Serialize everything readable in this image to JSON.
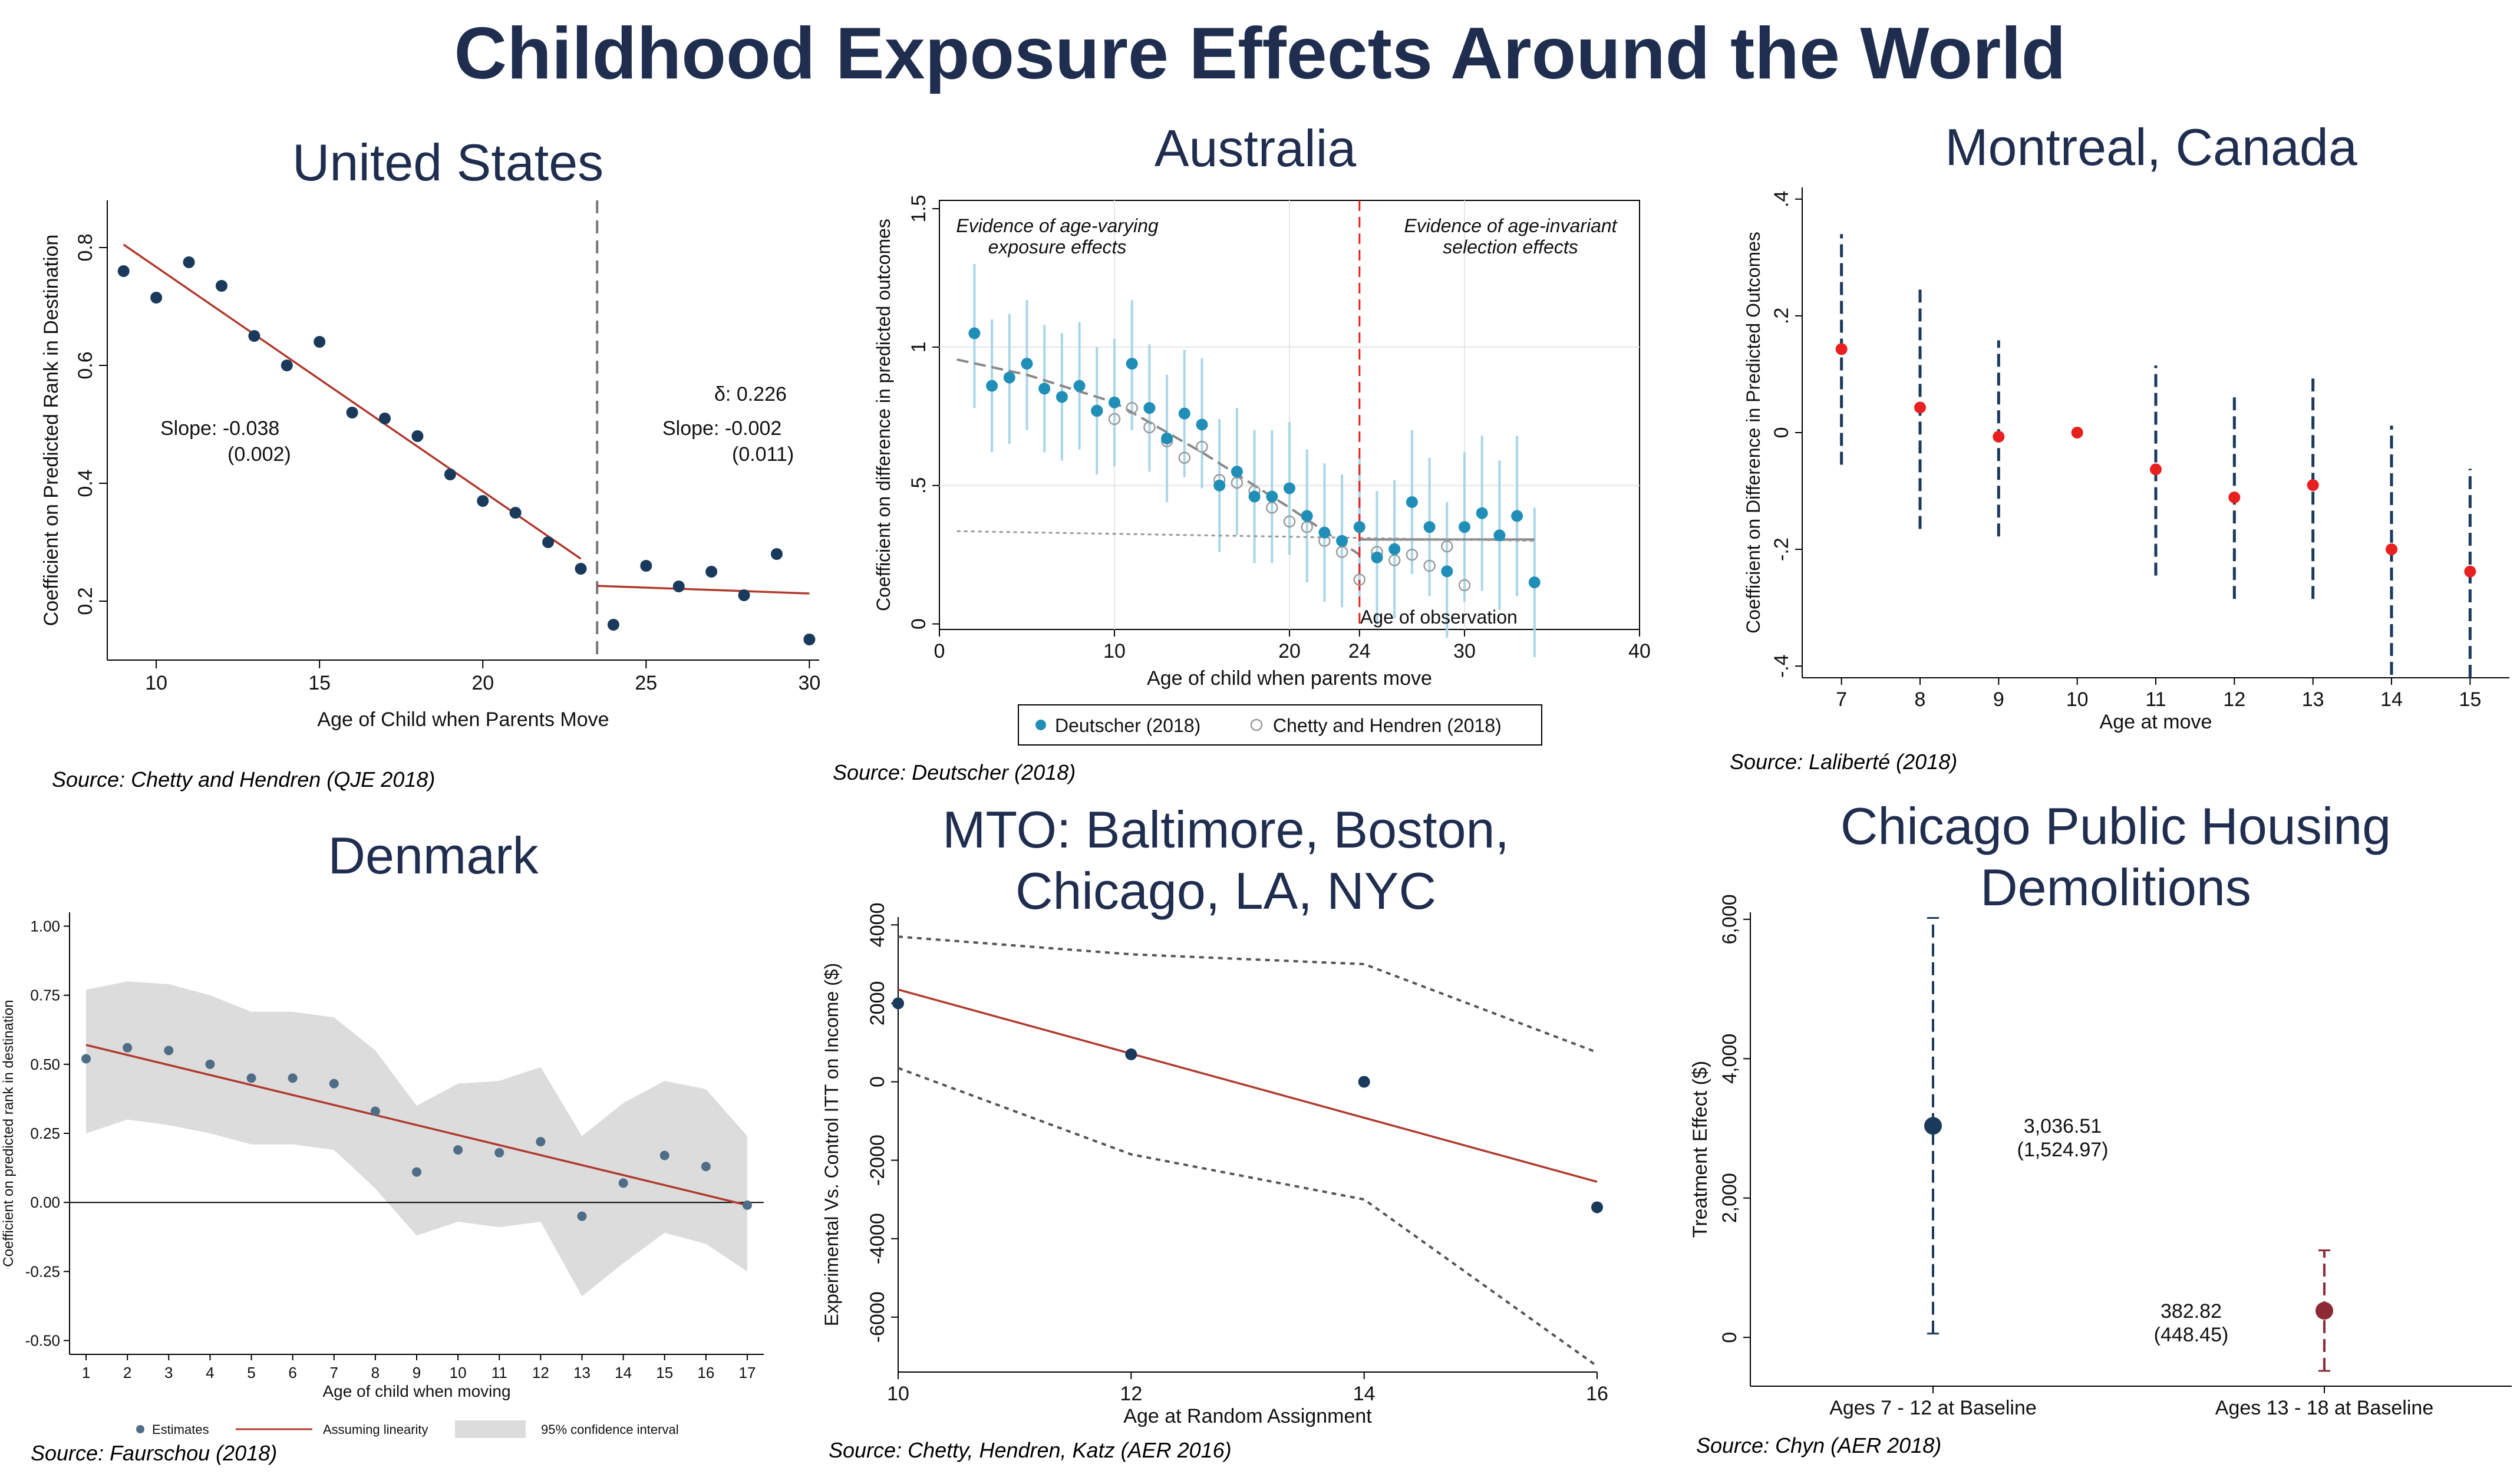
{
  "title": "Childhood Exposure Effects Around the World",
  "colors": {
    "title": "#1f2d4e",
    "navy": "#1a3a5c",
    "red_line": "#b03a2e",
    "teal": "#1f8fb8",
    "light_teal": "#a9d6e8",
    "grey_marker": "#9a9a9a",
    "bright_red": "#e8201f",
    "maroon": "#8b2a35",
    "band": "#dcdcdc",
    "denmark_dot": "#4f6d87"
  },
  "chart_data": [
    {
      "id": "us",
      "type": "scatter",
      "title": "United States",
      "source": "Source: Chetty and Hendren (QJE 2018)",
      "xlabel": "Age of Child when Parents Move",
      "ylabel": "Coefficient on Predicted Rank in Destination",
      "xlim": [
        8.5,
        30.3
      ],
      "ylim": [
        0.1,
        0.88
      ],
      "xticks": [
        "10",
        "15",
        "20",
        "25",
        "30"
      ],
      "yticks": [
        "0.2",
        "0.4",
        "0.6",
        "0.8"
      ],
      "x": [
        9,
        10,
        11,
        12,
        13,
        14,
        15,
        16,
        17,
        18,
        19,
        20,
        21,
        22,
        23,
        24,
        25,
        26,
        27,
        28,
        29,
        30
      ],
      "values": [
        0.76,
        0.715,
        0.775,
        0.735,
        0.65,
        0.6,
        0.64,
        0.52,
        0.51,
        0.48,
        0.415,
        0.37,
        0.35,
        0.3,
        0.255,
        0.16,
        0.26,
        0.225,
        0.25,
        0.21,
        0.28,
        0.135
      ],
      "fit_lines": [
        {
          "x": [
            9,
            23
          ],
          "y": [
            0.805,
            0.272
          ]
        },
        {
          "x": [
            23.5,
            30
          ],
          "y": [
            0.226,
            0.213
          ]
        }
      ],
      "vline_x": 23.5,
      "annotations": {
        "slope_left_label": "Slope:  -0.038",
        "slope_left_se": "(0.002)",
        "delta": "δ: 0.226",
        "slope_right_label": "Slope:  -0.002",
        "slope_right_se": "(0.011)"
      }
    },
    {
      "id": "australia",
      "type": "scatter",
      "title": "Australia",
      "source": "Source: Deutscher (2018)",
      "xlabel": "Age of child when parents move",
      "ylabel": "Coefficient on difference in predicted outcomes",
      "xlim": [
        0,
        40
      ],
      "ylim": [
        -0.02,
        1.53
      ],
      "xticks": [
        "0",
        "10",
        "20",
        "24",
        "30",
        "40"
      ],
      "yticks": [
        "0",
        ".5",
        "1",
        "1.5"
      ],
      "series": [
        {
          "name": "Deutscher (2018)",
          "x": [
            2,
            3,
            4,
            5,
            6,
            7,
            8,
            9,
            10,
            11,
            12,
            13,
            14,
            15,
            16,
            17,
            18,
            19,
            20,
            21,
            22,
            23,
            24,
            25,
            26,
            27,
            28,
            29,
            30,
            31,
            32,
            33,
            34
          ],
          "values": [
            1.05,
            0.86,
            0.89,
            0.94,
            0.85,
            0.82,
            0.86,
            0.77,
            0.8,
            0.94,
            0.78,
            0.67,
            0.76,
            0.72,
            0.5,
            0.55,
            0.46,
            0.46,
            0.49,
            0.39,
            0.33,
            0.3,
            0.35,
            0.24,
            0.27,
            0.44,
            0.35,
            0.19,
            0.35,
            0.4,
            0.32,
            0.39,
            0.15
          ],
          "ci_low": [
            0.78,
            0.62,
            0.65,
            0.7,
            0.62,
            0.59,
            0.63,
            0.54,
            0.57,
            0.7,
            0.55,
            0.44,
            0.53,
            0.49,
            0.26,
            0.32,
            0.22,
            0.22,
            0.25,
            0.15,
            0.08,
            0.06,
            0.1,
            0.0,
            0.02,
            0.18,
            0.1,
            -0.05,
            0.08,
            0.12,
            0.05,
            0.1,
            -0.12
          ],
          "ci_high": [
            1.3,
            1.1,
            1.12,
            1.17,
            1.08,
            1.05,
            1.09,
            1.0,
            1.03,
            1.17,
            1.01,
            0.9,
            0.99,
            0.96,
            0.74,
            0.78,
            0.7,
            0.7,
            0.73,
            0.63,
            0.58,
            0.54,
            0.6,
            0.48,
            0.52,
            0.7,
            0.6,
            0.44,
            0.62,
            0.68,
            0.59,
            0.68,
            0.42
          ]
        },
        {
          "name": "Chetty and Hendren (2018)",
          "x": [
            9,
            10,
            11,
            12,
            13,
            14,
            15,
            16,
            17,
            18,
            19,
            20,
            21,
            22,
            23,
            24,
            25,
            26,
            27,
            28,
            29,
            30
          ],
          "values": [
            0.77,
            0.74,
            0.78,
            0.71,
            0.66,
            0.6,
            0.64,
            0.52,
            0.51,
            0.48,
            0.42,
            0.37,
            0.35,
            0.3,
            0.26,
            0.16,
            0.26,
            0.23,
            0.25,
            0.21,
            0.28,
            0.14
          ]
        }
      ],
      "fit_lines": [
        {
          "x": [
            1,
            5,
            10,
            15,
            20,
            24
          ],
          "y": [
            0.955,
            0.9,
            0.8,
            0.62,
            0.42,
            0.25
          ]
        },
        {
          "x": [
            24,
            34
          ],
          "y": [
            0.305,
            0.305
          ]
        },
        {
          "x": [
            1,
            34
          ],
          "y": [
            0.335,
            0.3
          ]
        }
      ],
      "vline_x": 24,
      "annotations": {
        "left_line1": "Evidence of age-varying",
        "left_line2": "exposure effects",
        "right_line1": "Evidence of age-invariant",
        "right_line2": "selection effects",
        "age_observation": "Age of observation"
      },
      "legend_position": "bottom"
    },
    {
      "id": "montreal",
      "type": "scatter",
      "title": "Montreal, Canada",
      "source": "Source: Laliberté (2018)",
      "xlabel": "Age at move",
      "ylabel": "Coefficient on Difference in Predicted Outcomes",
      "xlim": [
        6.5,
        15.5
      ],
      "ylim": [
        -0.42,
        0.42
      ],
      "xticks": [
        "7",
        "8",
        "9",
        "10",
        "11",
        "12",
        "13",
        "14",
        "15"
      ],
      "yticks": [
        "-.4",
        "-.2",
        "0",
        ".2",
        ".4"
      ],
      "x": [
        7,
        8,
        9,
        10,
        11,
        12,
        13,
        14,
        15
      ],
      "values": [
        0.143,
        0.043,
        -0.007,
        0.0,
        -0.063,
        -0.111,
        -0.09,
        -0.2,
        -0.238
      ],
      "ci_low": [
        -0.055,
        -0.165,
        -0.178,
        null,
        -0.245,
        -0.285,
        -0.285,
        -0.415,
        -0.42
      ],
      "ci_high": [
        0.34,
        0.245,
        0.158,
        null,
        0.115,
        0.065,
        0.102,
        0.012,
        -0.062
      ]
    },
    {
      "id": "denmark",
      "type": "scatter",
      "title": "Denmark",
      "source": "Source: Faurschou (2018)",
      "xlabel": "Age of child when moving",
      "ylabel": "Coefficient on predicted rank in destination",
      "xlim": [
        0.6,
        17.4
      ],
      "ylim": [
        -0.55,
        1.05
      ],
      "xticks": [
        "1",
        "2",
        "3",
        "4",
        "5",
        "6",
        "7",
        "8",
        "9",
        "10",
        "11",
        "12",
        "13",
        "14",
        "15",
        "16",
        "17"
      ],
      "yticks": [
        "-0.50",
        "-0.25",
        "0.00",
        "0.25",
        "0.50",
        "0.75",
        "1.00"
      ],
      "x": [
        1,
        2,
        3,
        4,
        5,
        6,
        7,
        8,
        9,
        10,
        11,
        12,
        13,
        14,
        15,
        16,
        17
      ],
      "values": [
        0.52,
        0.56,
        0.55,
        0.5,
        0.45,
        0.45,
        0.43,
        0.33,
        0.11,
        0.19,
        0.18,
        0.22,
        -0.05,
        0.07,
        0.17,
        0.13,
        -0.01
      ],
      "band_low": [
        0.25,
        0.3,
        0.28,
        0.25,
        0.21,
        0.21,
        0.19,
        0.05,
        -0.12,
        -0.07,
        -0.09,
        -0.07,
        -0.34,
        -0.22,
        -0.11,
        -0.15,
        -0.25
      ],
      "band_high": [
        0.77,
        0.8,
        0.79,
        0.75,
        0.69,
        0.69,
        0.67,
        0.55,
        0.35,
        0.43,
        0.44,
        0.49,
        0.24,
        0.36,
        0.44,
        0.41,
        0.24
      ],
      "fit_line": {
        "x": [
          1,
          17
        ],
        "y": [
          0.57,
          -0.01
        ]
      },
      "legend": [
        "Estimates",
        "Assuming linearity",
        "95% confidence interval"
      ],
      "legend_position": "bottom"
    },
    {
      "id": "mto",
      "type": "line",
      "title_lines": [
        "MTO: Baltimore, Boston,",
        "Chicago, LA, NYC"
      ],
      "source": "Source: Chetty, Hendren, Katz (AER 2016)",
      "xlabel": "Age at Random Assignment",
      "ylabel": "Experimental Vs. Control ITT on Income ($)",
      "xlim": [
        10,
        16
      ],
      "ylim": [
        -7400,
        4200
      ],
      "xticks": [
        "10",
        "12",
        "14",
        "16"
      ],
      "yticks": [
        "-6000",
        "-4000",
        "-2000",
        "0",
        "2000",
        "4000"
      ],
      "x": [
        10,
        12,
        14,
        16
      ],
      "values": [
        2000,
        700,
        0,
        -3200
      ],
      "fit_line": {
        "x": [
          10,
          16
        ],
        "y": [
          2350,
          -2550
        ]
      },
      "ci_upper": {
        "x": [
          10,
          12,
          14,
          16
        ],
        "y": [
          3700,
          3250,
          3000,
          750
        ]
      },
      "ci_lower": {
        "x": [
          10,
          12,
          14,
          16
        ],
        "y": [
          350,
          -1850,
          -3000,
          -7250
        ]
      }
    },
    {
      "id": "chicago",
      "type": "scatter",
      "title_lines": [
        "Chicago Public Housing",
        "Demolitions"
      ],
      "source": "Source: Chyn (AER 2018)",
      "xlabel": "",
      "ylabel": "Treatment Effect ($)",
      "ylim": [
        -700,
        6100
      ],
      "yticks": [
        "0",
        "2,000",
        "4,000",
        "6,000"
      ],
      "categories": [
        "Ages 7 - 12 at Baseline",
        "Ages 13 - 18 at Baseline"
      ],
      "values": [
        3036.51,
        382.82
      ],
      "ci_low": [
        55,
        -480
      ],
      "ci_high": [
        6020,
        1250
      ],
      "value_labels": [
        "3,036.51",
        "382.82"
      ],
      "se_labels": [
        "(1,524.97)",
        "(448.45)"
      ]
    }
  ]
}
